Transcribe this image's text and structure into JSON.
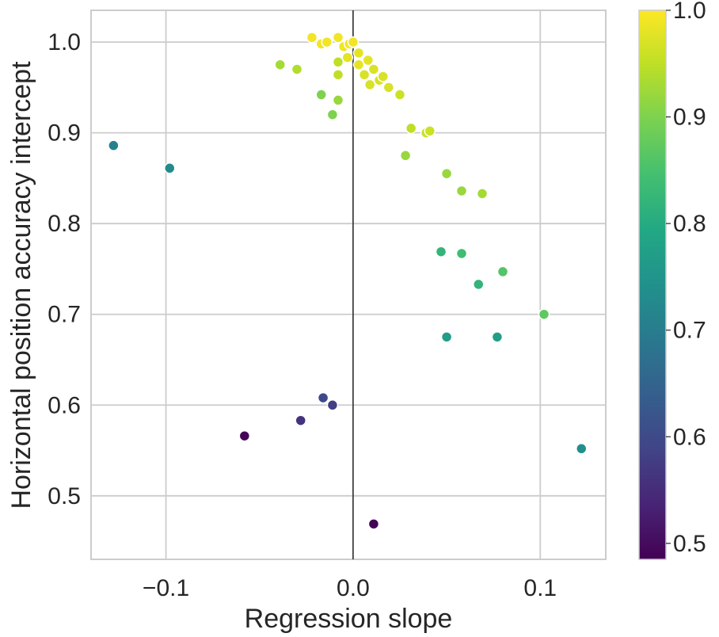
{
  "chart_data": {
    "type": "scatter",
    "xlabel": "Regression slope",
    "ylabel": "Horizontal position accuracy intercept",
    "xlim": [
      -0.14,
      0.135
    ],
    "ylim": [
      0.43,
      1.035
    ],
    "xticks": [
      -0.1,
      0.0,
      0.1
    ],
    "xtick_labels": [
      "−0.1",
      "0.0",
      "0.1"
    ],
    "yticks": [
      0.5,
      0.6,
      0.7,
      0.8,
      0.9,
      1.0
    ],
    "ytick_labels": [
      "0.5",
      "0.6",
      "0.7",
      "0.8",
      "0.9",
      "1.0"
    ],
    "grid": true,
    "vline_x": 0.0,
    "colorbar": {
      "cmap": "viridis",
      "range": [
        0.485,
        1.0
      ],
      "ticks": [
        0.5,
        0.6,
        0.7,
        0.8,
        0.9,
        1.0
      ],
      "tick_labels": [
        "0.5",
        "0.6",
        "0.7",
        "0.8",
        "0.9",
        "1.0"
      ]
    },
    "points": [
      {
        "x": -0.022,
        "y": 1.005,
        "c": 0.99
      },
      {
        "x": -0.017,
        "y": 0.998,
        "c": 0.99
      },
      {
        "x": -0.014,
        "y": 1.0,
        "c": 0.99
      },
      {
        "x": -0.008,
        "y": 1.005,
        "c": 0.99
      },
      {
        "x": -0.005,
        "y": 0.995,
        "c": 0.99
      },
      {
        "x": -0.002,
        "y": 0.998,
        "c": 0.99
      },
      {
        "x": 0.0,
        "y": 1.0,
        "c": 0.99
      },
      {
        "x": -0.003,
        "y": 0.983,
        "c": 0.98
      },
      {
        "x": 0.003,
        "y": 0.988,
        "c": 0.98
      },
      {
        "x": 0.003,
        "y": 0.975,
        "c": 0.98
      },
      {
        "x": 0.008,
        "y": 0.98,
        "c": 0.98
      },
      {
        "x": 0.006,
        "y": 0.964,
        "c": 0.97
      },
      {
        "x": 0.011,
        "y": 0.97,
        "c": 0.97
      },
      {
        "x": 0.014,
        "y": 0.958,
        "c": 0.97
      },
      {
        "x": 0.016,
        "y": 0.962,
        "c": 0.97
      },
      {
        "x": 0.009,
        "y": 0.953,
        "c": 0.97
      },
      {
        "x": 0.019,
        "y": 0.95,
        "c": 0.97
      },
      {
        "x": 0.025,
        "y": 0.942,
        "c": 0.96
      },
      {
        "x": -0.008,
        "y": 0.978,
        "c": 0.95
      },
      {
        "x": -0.008,
        "y": 0.964,
        "c": 0.95
      },
      {
        "x": -0.039,
        "y": 0.975,
        "c": 0.93
      },
      {
        "x": -0.03,
        "y": 0.97,
        "c": 0.94
      },
      {
        "x": -0.017,
        "y": 0.942,
        "c": 0.9
      },
      {
        "x": -0.008,
        "y": 0.936,
        "c": 0.92
      },
      {
        "x": -0.011,
        "y": 0.92,
        "c": 0.9
      },
      {
        "x": 0.031,
        "y": 0.905,
        "c": 0.95
      },
      {
        "x": 0.039,
        "y": 0.9,
        "c": 0.96
      },
      {
        "x": 0.041,
        "y": 0.902,
        "c": 0.96
      },
      {
        "x": 0.028,
        "y": 0.875,
        "c": 0.92
      },
      {
        "x": 0.05,
        "y": 0.855,
        "c": 0.92
      },
      {
        "x": 0.058,
        "y": 0.836,
        "c": 0.92
      },
      {
        "x": 0.069,
        "y": 0.833,
        "c": 0.93
      },
      {
        "x": -0.128,
        "y": 0.886,
        "c": 0.71
      },
      {
        "x": -0.098,
        "y": 0.861,
        "c": 0.73
      },
      {
        "x": 0.047,
        "y": 0.769,
        "c": 0.82
      },
      {
        "x": 0.058,
        "y": 0.767,
        "c": 0.84
      },
      {
        "x": 0.08,
        "y": 0.747,
        "c": 0.86
      },
      {
        "x": 0.067,
        "y": 0.733,
        "c": 0.82
      },
      {
        "x": 0.102,
        "y": 0.7,
        "c": 0.87
      },
      {
        "x": 0.05,
        "y": 0.675,
        "c": 0.77
      },
      {
        "x": 0.077,
        "y": 0.675,
        "c": 0.77
      },
      {
        "x": -0.016,
        "y": 0.608,
        "c": 0.6
      },
      {
        "x": -0.011,
        "y": 0.6,
        "c": 0.58
      },
      {
        "x": -0.028,
        "y": 0.583,
        "c": 0.56
      },
      {
        "x": -0.058,
        "y": 0.566,
        "c": 0.49
      },
      {
        "x": 0.122,
        "y": 0.552,
        "c": 0.74
      },
      {
        "x": 0.011,
        "y": 0.469,
        "c": 0.49
      }
    ]
  }
}
